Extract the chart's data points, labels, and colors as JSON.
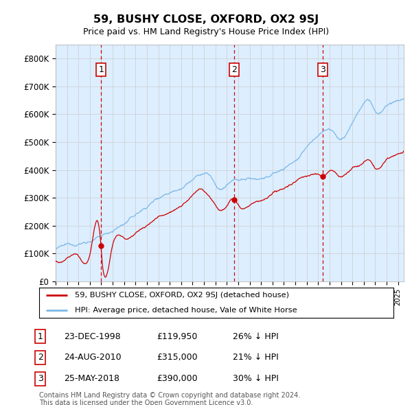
{
  "title": "59, BUSHY CLOSE, OXFORD, OX2 9SJ",
  "subtitle": "Price paid vs. HM Land Registry's House Price Index (HPI)",
  "ylim": [
    0,
    850000
  ],
  "yticks": [
    0,
    100000,
    200000,
    300000,
    400000,
    500000,
    600000,
    700000,
    800000
  ],
  "ytick_labels": [
    "£0",
    "£100K",
    "£200K",
    "£300K",
    "£400K",
    "£500K",
    "£600K",
    "£700K",
    "£800K"
  ],
  "hpi_color": "#7ab8e8",
  "price_color": "#cc0000",
  "vline_color": "#cc0000",
  "bg_color": "#ddeeff",
  "sale_dates": [
    1998.98,
    2010.65,
    2018.4
  ],
  "sale_prices": [
    119950,
    315000,
    390000
  ],
  "sale_labels": [
    "1",
    "2",
    "3"
  ],
  "legend_price_label": "59, BUSHY CLOSE, OXFORD, OX2 9SJ (detached house)",
  "legend_hpi_label": "HPI: Average price, detached house, Vale of White Horse",
  "table_rows": [
    [
      "1",
      "23-DEC-1998",
      "£119,950",
      "26% ↓ HPI"
    ],
    [
      "2",
      "24-AUG-2010",
      "£315,000",
      "21% ↓ HPI"
    ],
    [
      "3",
      "25-MAY-2018",
      "£390,000",
      "30% ↓ HPI"
    ]
  ],
  "footnote": "Contains HM Land Registry data © Crown copyright and database right 2024.\nThis data is licensed under the Open Government Licence v3.0.",
  "grid_color": "#cccccc",
  "hpi_ctrl_x": [
    1995,
    1996,
    1997,
    1998,
    1999,
    2000,
    2001,
    2002,
    2003,
    2004,
    2005,
    2006,
    2007,
    2007.8,
    2008.5,
    2009,
    2009.5,
    2010,
    2010.5,
    2011,
    2012,
    2013,
    2014,
    2015,
    2016,
    2016.5,
    2017,
    2018,
    2018.5,
    2019,
    2020,
    2021,
    2022,
    2022.5,
    2023,
    2024,
    2025,
    2025.5
  ],
  "hpi_ctrl_y": [
    118000,
    125000,
    135000,
    148000,
    162000,
    185000,
    210000,
    240000,
    270000,
    305000,
    330000,
    355000,
    385000,
    400000,
    395000,
    360000,
    345000,
    355000,
    365000,
    370000,
    375000,
    380000,
    395000,
    415000,
    445000,
    460000,
    490000,
    530000,
    550000,
    555000,
    520000,
    580000,
    650000,
    660000,
    620000,
    640000,
    650000,
    660000
  ],
  "price_ctrl_x": [
    1995,
    1996,
    1997,
    1998,
    1998.98,
    1999,
    2000,
    2001,
    2002,
    2003,
    2004,
    2005,
    2006,
    2007,
    2007.8,
    2008,
    2008.5,
    2009,
    2009.5,
    2010,
    2010.65,
    2011,
    2012,
    2013,
    2014,
    2015,
    2016,
    2016.5,
    2017,
    2018,
    2018.4,
    2019,
    2020,
    2021,
    2022,
    2022.5,
    2023,
    2024,
    2025,
    2025.5
  ],
  "price_ctrl_y": [
    75000,
    80000,
    85000,
    95000,
    119950,
    108000,
    125000,
    150000,
    175000,
    200000,
    230000,
    255000,
    280000,
    315000,
    330000,
    325000,
    310000,
    285000,
    270000,
    290000,
    315000,
    295000,
    300000,
    310000,
    325000,
    345000,
    370000,
    385000,
    390000,
    400000,
    390000,
    410000,
    390000,
    420000,
    440000,
    450000,
    420000,
    445000,
    460000,
    470000
  ]
}
